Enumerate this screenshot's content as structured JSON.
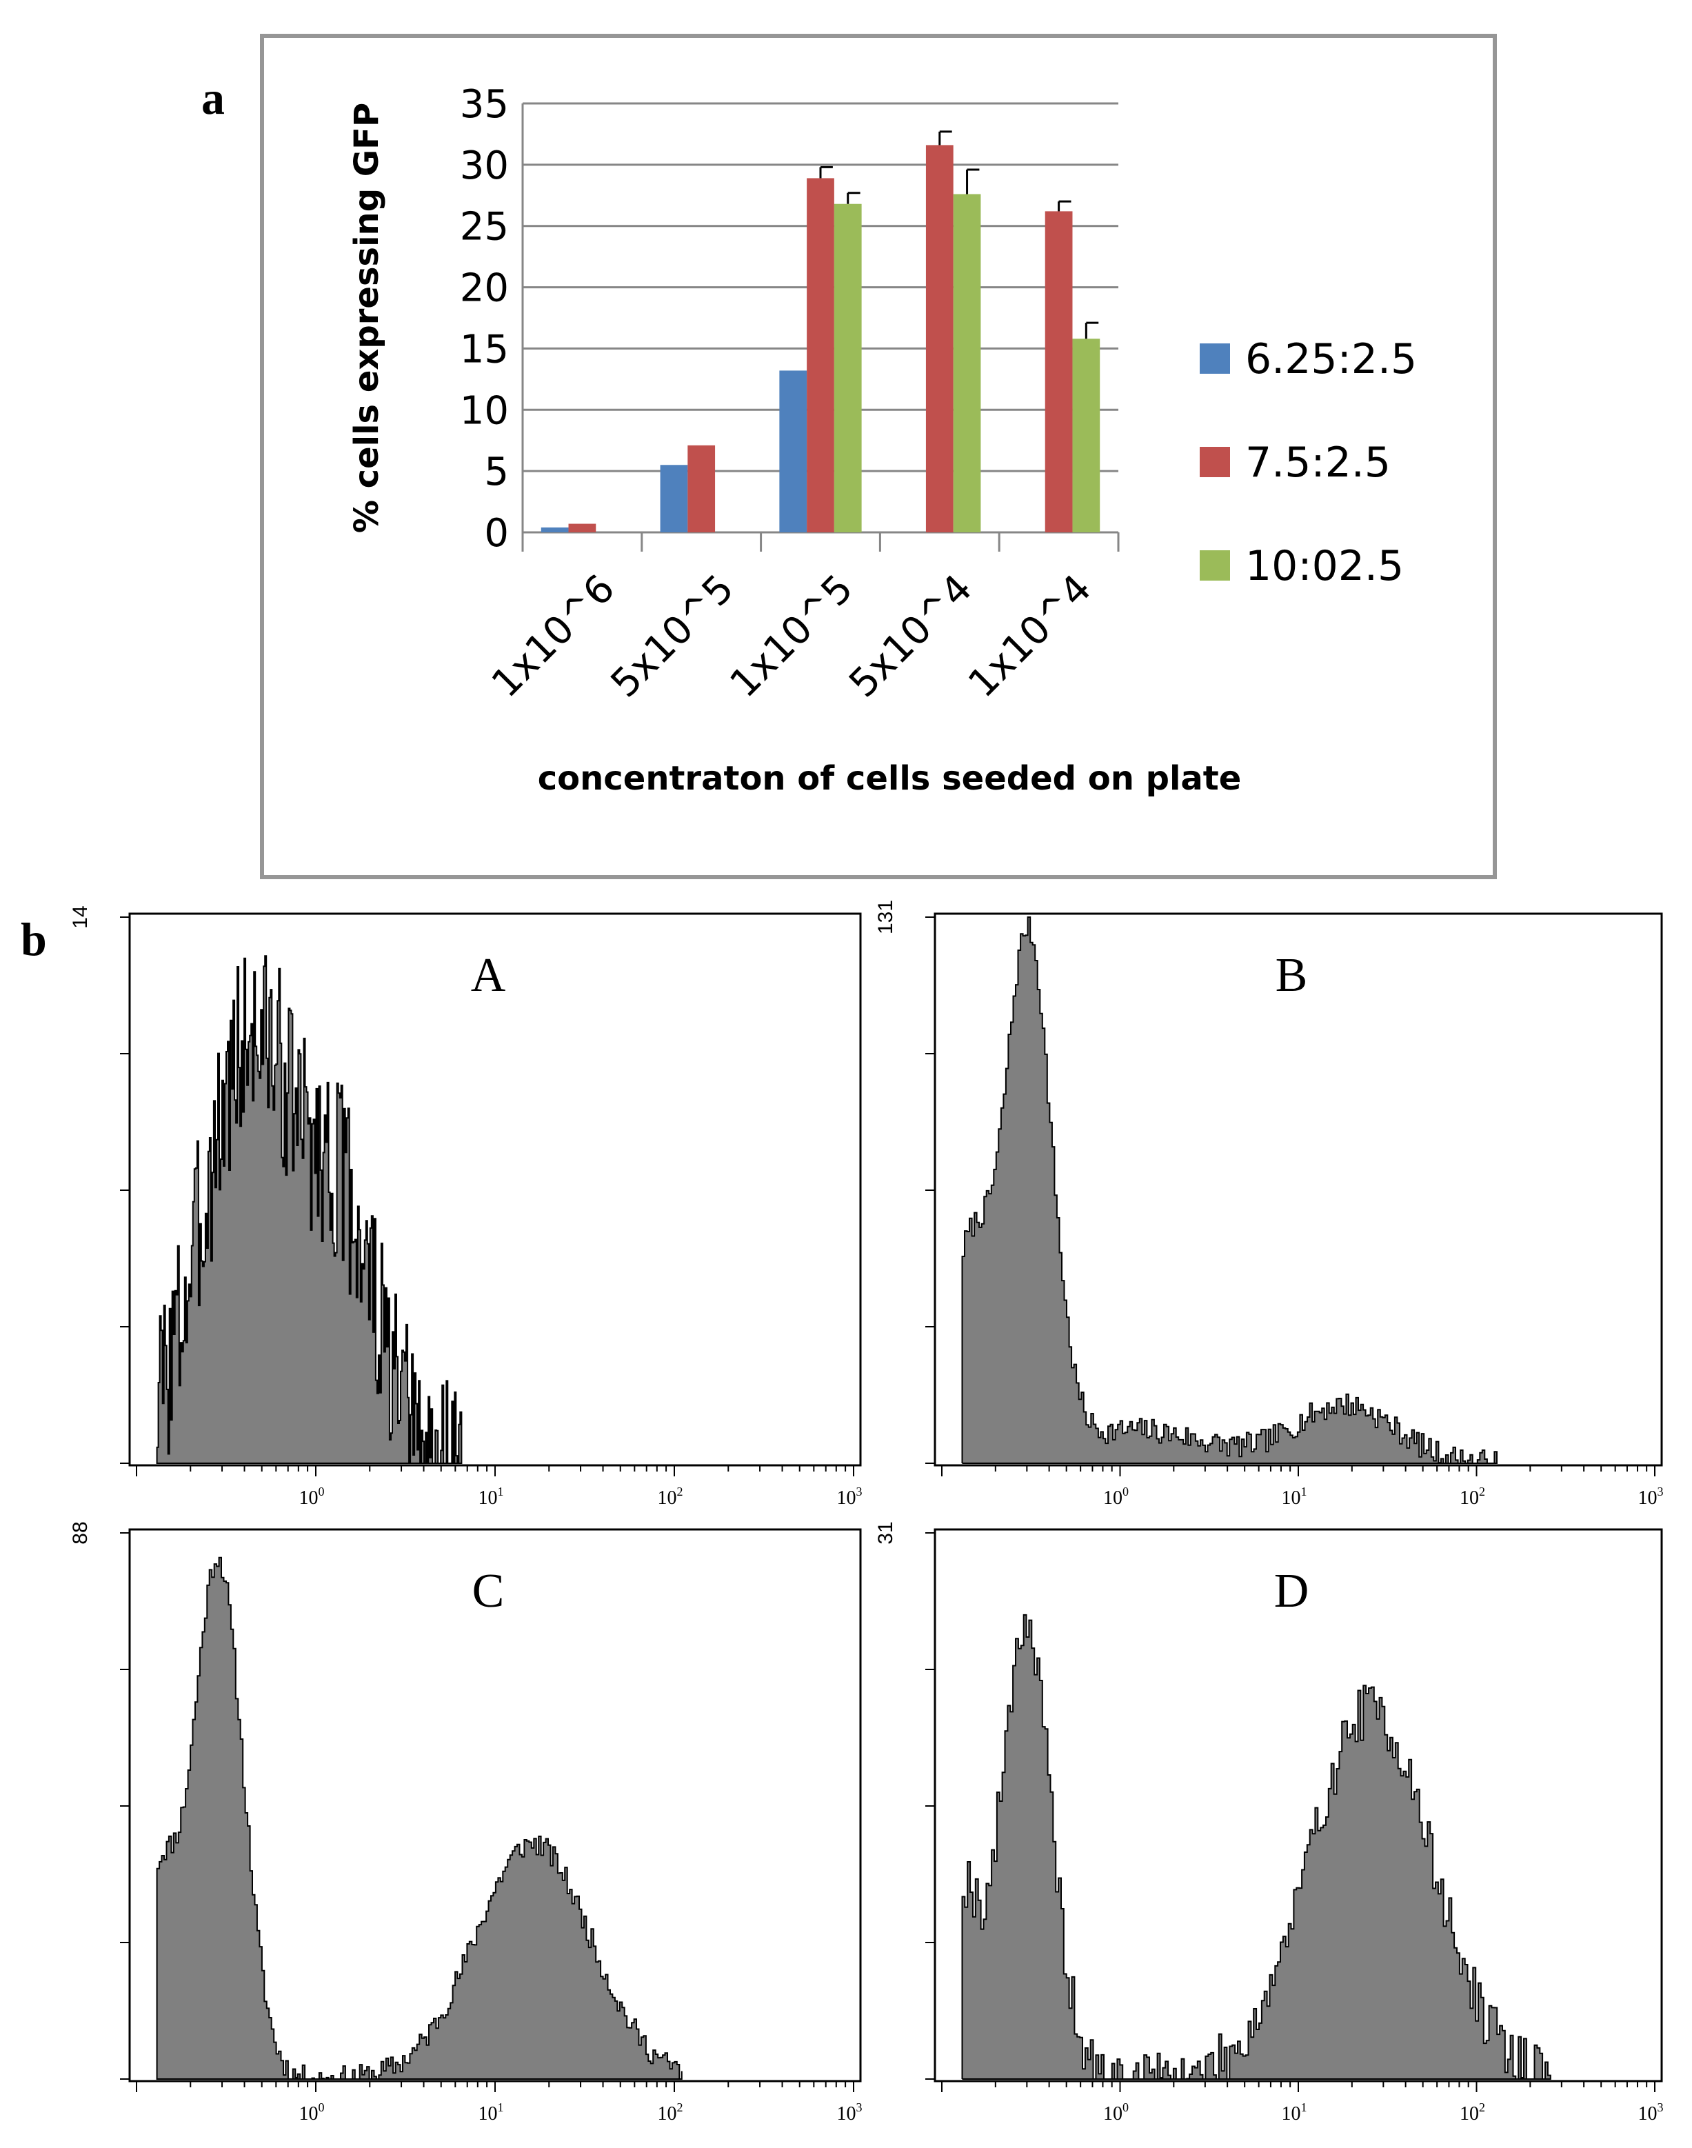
{
  "panel_a_label": "a",
  "panel_b_label": "b",
  "chart_data": [
    {
      "type": "bar",
      "title": "",
      "xlabel": "concentraton of cells seeded on plate",
      "ylabel": "% cells expressing GFP",
      "ylim": [
        0,
        35
      ],
      "yticks": [
        0,
        5,
        10,
        15,
        20,
        25,
        30,
        35
      ],
      "grid": true,
      "legend_position": "right",
      "categories": [
        "1x10^6",
        "5x10^5",
        "1x10^5",
        "5x10^4",
        "1x10^4"
      ],
      "series": [
        {
          "name": "6.25:2.5",
          "color": "#4F81BD",
          "values": [
            0.4,
            5.5,
            13.2,
            0,
            0
          ],
          "errors": [
            0,
            0,
            0,
            0,
            0
          ]
        },
        {
          "name": "7.5:2.5",
          "color": "#C0504D",
          "values": [
            0.7,
            7.1,
            28.9,
            31.6,
            26.2
          ],
          "errors": [
            0,
            0,
            0.9,
            1.1,
            0.8
          ]
        },
        {
          "name": "10:02.5",
          "color": "#9BBB59",
          "values": [
            0,
            0,
            26.8,
            27.6,
            15.8
          ],
          "errors": [
            0,
            0,
            0.9,
            2.0,
            1.3
          ]
        }
      ]
    },
    {
      "type": "area",
      "title": "A",
      "x_scale": "log",
      "x_range": [
        0.1,
        1000
      ],
      "xticks": [
        {
          "base": "10",
          "exp": "0",
          "value": 1
        },
        {
          "base": "10",
          "exp": "1",
          "value": 10
        },
        {
          "base": "10",
          "exp": "2",
          "value": 100
        },
        {
          "base": "10",
          "exp": "3",
          "value": 1000
        }
      ],
      "ymax_label": "14",
      "ylim": [
        0,
        14
      ],
      "peaks": [
        {
          "center": 0.45,
          "height": 11,
          "width": 0.28
        },
        {
          "center": 1.5,
          "height": 5,
          "width": 0.18
        }
      ],
      "x_cutoff": 6.5,
      "noise": 2.5,
      "seed": 3
    },
    {
      "type": "area",
      "title": "B",
      "x_scale": "log",
      "x_range": [
        0.1,
        1000
      ],
      "xticks": [
        {
          "base": "10",
          "exp": "0",
          "value": 1
        },
        {
          "base": "10",
          "exp": "1",
          "value": 10
        },
        {
          "base": "10",
          "exp": "2",
          "value": 100
        },
        {
          "base": "10",
          "exp": "3",
          "value": 1000
        }
      ],
      "ymax_label": "131",
      "ylim": [
        0,
        131
      ],
      "peaks": [
        {
          "center": 0.3,
          "height": 125,
          "width": 0.13
        },
        {
          "center": 0.14,
          "height": 50,
          "width": 0.12
        },
        {
          "center": 1.2,
          "height": 8,
          "width": 0.4
        },
        {
          "center": 18,
          "height": 14,
          "width": 0.28
        }
      ],
      "x_cutoff": 130,
      "noise": 3,
      "seed": 7
    },
    {
      "type": "area",
      "title": "C",
      "x_scale": "log",
      "x_range": [
        0.1,
        1000
      ],
      "xticks": [
        {
          "base": "10",
          "exp": "0",
          "value": 1
        },
        {
          "base": "10",
          "exp": "1",
          "value": 10
        },
        {
          "base": "10",
          "exp": "2",
          "value": 100
        },
        {
          "base": "10",
          "exp": "3",
          "value": 1000
        }
      ],
      "ymax_label": "88",
      "ylim": [
        0,
        88
      ],
      "peaks": [
        {
          "center": 0.28,
          "height": 84,
          "width": 0.14
        },
        {
          "center": 0.13,
          "height": 30,
          "width": 0.1
        },
        {
          "center": 16,
          "height": 38,
          "width": 0.32
        }
      ],
      "x_cutoff": 110,
      "noise": 2,
      "seed": 11
    },
    {
      "type": "area",
      "title": "D",
      "x_scale": "log",
      "x_range": [
        0.1,
        1000
      ],
      "xticks": [
        {
          "base": "10",
          "exp": "0",
          "value": 1
        },
        {
          "base": "10",
          "exp": "1",
          "value": 10
        },
        {
          "base": "10",
          "exp": "2",
          "value": 100
        },
        {
          "base": "10",
          "exp": "3",
          "value": 1000
        }
      ],
      "ymax_label": "31",
      "ylim": [
        0,
        31
      ],
      "peaks": [
        {
          "center": 0.29,
          "height": 26,
          "width": 0.14
        },
        {
          "center": 0.13,
          "height": 10,
          "width": 0.08
        },
        {
          "center": 25,
          "height": 21,
          "width": 0.34
        }
      ],
      "x_cutoff": 260,
      "noise": 1.6,
      "seed": 19
    }
  ]
}
